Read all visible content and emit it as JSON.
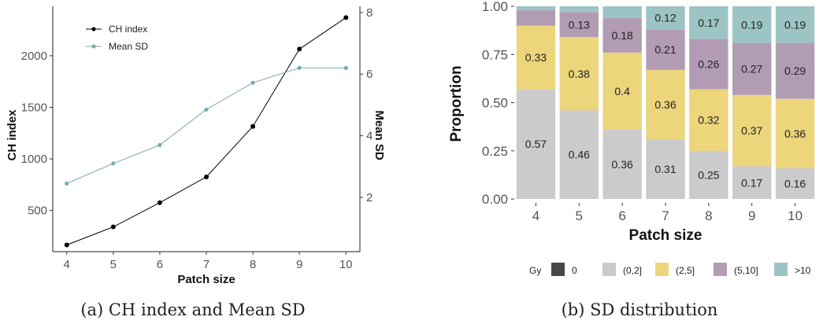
{
  "chart_data": [
    {
      "type": "line",
      "caption": "(a) CH index and Mean SD",
      "xlabel": "Patch size",
      "ylabel": "CH index",
      "y2label": "Mean SD",
      "x": [
        4,
        5,
        6,
        7,
        8,
        9,
        10
      ],
      "xticks": [
        "4",
        "5",
        "6",
        "7",
        "8",
        "9",
        "10"
      ],
      "ylim": [
        100,
        2480
      ],
      "yticks": [
        "500",
        "1000",
        "1500",
        "2000"
      ],
      "y2lim": [
        0.24,
        8.2
      ],
      "y2ticks": [
        "2",
        "4",
        "6",
        "8"
      ],
      "legend_position": "top-left",
      "series": [
        {
          "name": "CH index",
          "axis": "left",
          "color": "#000000",
          "values": [
            165,
            340,
            575,
            825,
            1315,
            2065,
            2370
          ]
        },
        {
          "name": "Mean SD",
          "axis": "right",
          "color": "#79aaae",
          "values": [
            2.45,
            3.1,
            3.7,
            4.85,
            5.72,
            6.2,
            6.2
          ]
        }
      ],
      "grid": false
    },
    {
      "type": "bar",
      "stacked": true,
      "caption": "(b) SD distribution",
      "xlabel": "Patch size",
      "ylabel": "Proportion",
      "categories": [
        "4",
        "5",
        "6",
        "7",
        "8",
        "9",
        "10"
      ],
      "ylim": [
        -0.02,
        1.0
      ],
      "yticks": [
        "0.00",
        "0.25",
        "0.50",
        "0.75",
        "1.00"
      ],
      "legend_title": "Gy",
      "legend_position": "bottom",
      "legend": [
        {
          "name": "0",
          "color": "#474747"
        },
        {
          "name": "(0,2]",
          "color": "#cbcbcd"
        },
        {
          "name": "(2,5]",
          "color": "#ecd57a"
        },
        {
          "name": "(5,10]",
          "color": "#b29cb4"
        },
        {
          "name": ">10",
          "color": "#9dc4c5"
        }
      ],
      "series": [
        {
          "name": "(0,2]",
          "color": "#cbcbcd",
          "values": [
            0.57,
            0.46,
            0.36,
            0.31,
            0.25,
            0.17,
            0.16
          ],
          "labels": [
            "0.57",
            "0.46",
            "0.36",
            "0.31",
            "0.25",
            "0.17",
            "0.16"
          ]
        },
        {
          "name": "(2,5]",
          "color": "#ecd57a",
          "values": [
            0.33,
            0.38,
            0.4,
            0.36,
            0.32,
            0.37,
            0.36
          ],
          "labels": [
            "0.33",
            "0.38",
            "0.4",
            "0.36",
            "0.32",
            "0.37",
            "0.36"
          ]
        },
        {
          "name": "(5,10]",
          "color": "#b29cb4",
          "values": [
            0.08,
            0.13,
            0.18,
            0.21,
            0.26,
            0.27,
            0.29
          ],
          "labels": [
            "",
            "0.13",
            "0.18",
            "0.21",
            "0.26",
            "0.27",
            "0.29"
          ]
        },
        {
          "name": ">10",
          "color": "#9dc4c5",
          "values": [
            0.02,
            0.03,
            0.06,
            0.12,
            0.17,
            0.19,
            0.19
          ],
          "labels": [
            "",
            "",
            "",
            "0.12",
            "0.17",
            "0.19",
            "0.19"
          ]
        }
      ],
      "grid": false
    }
  ]
}
